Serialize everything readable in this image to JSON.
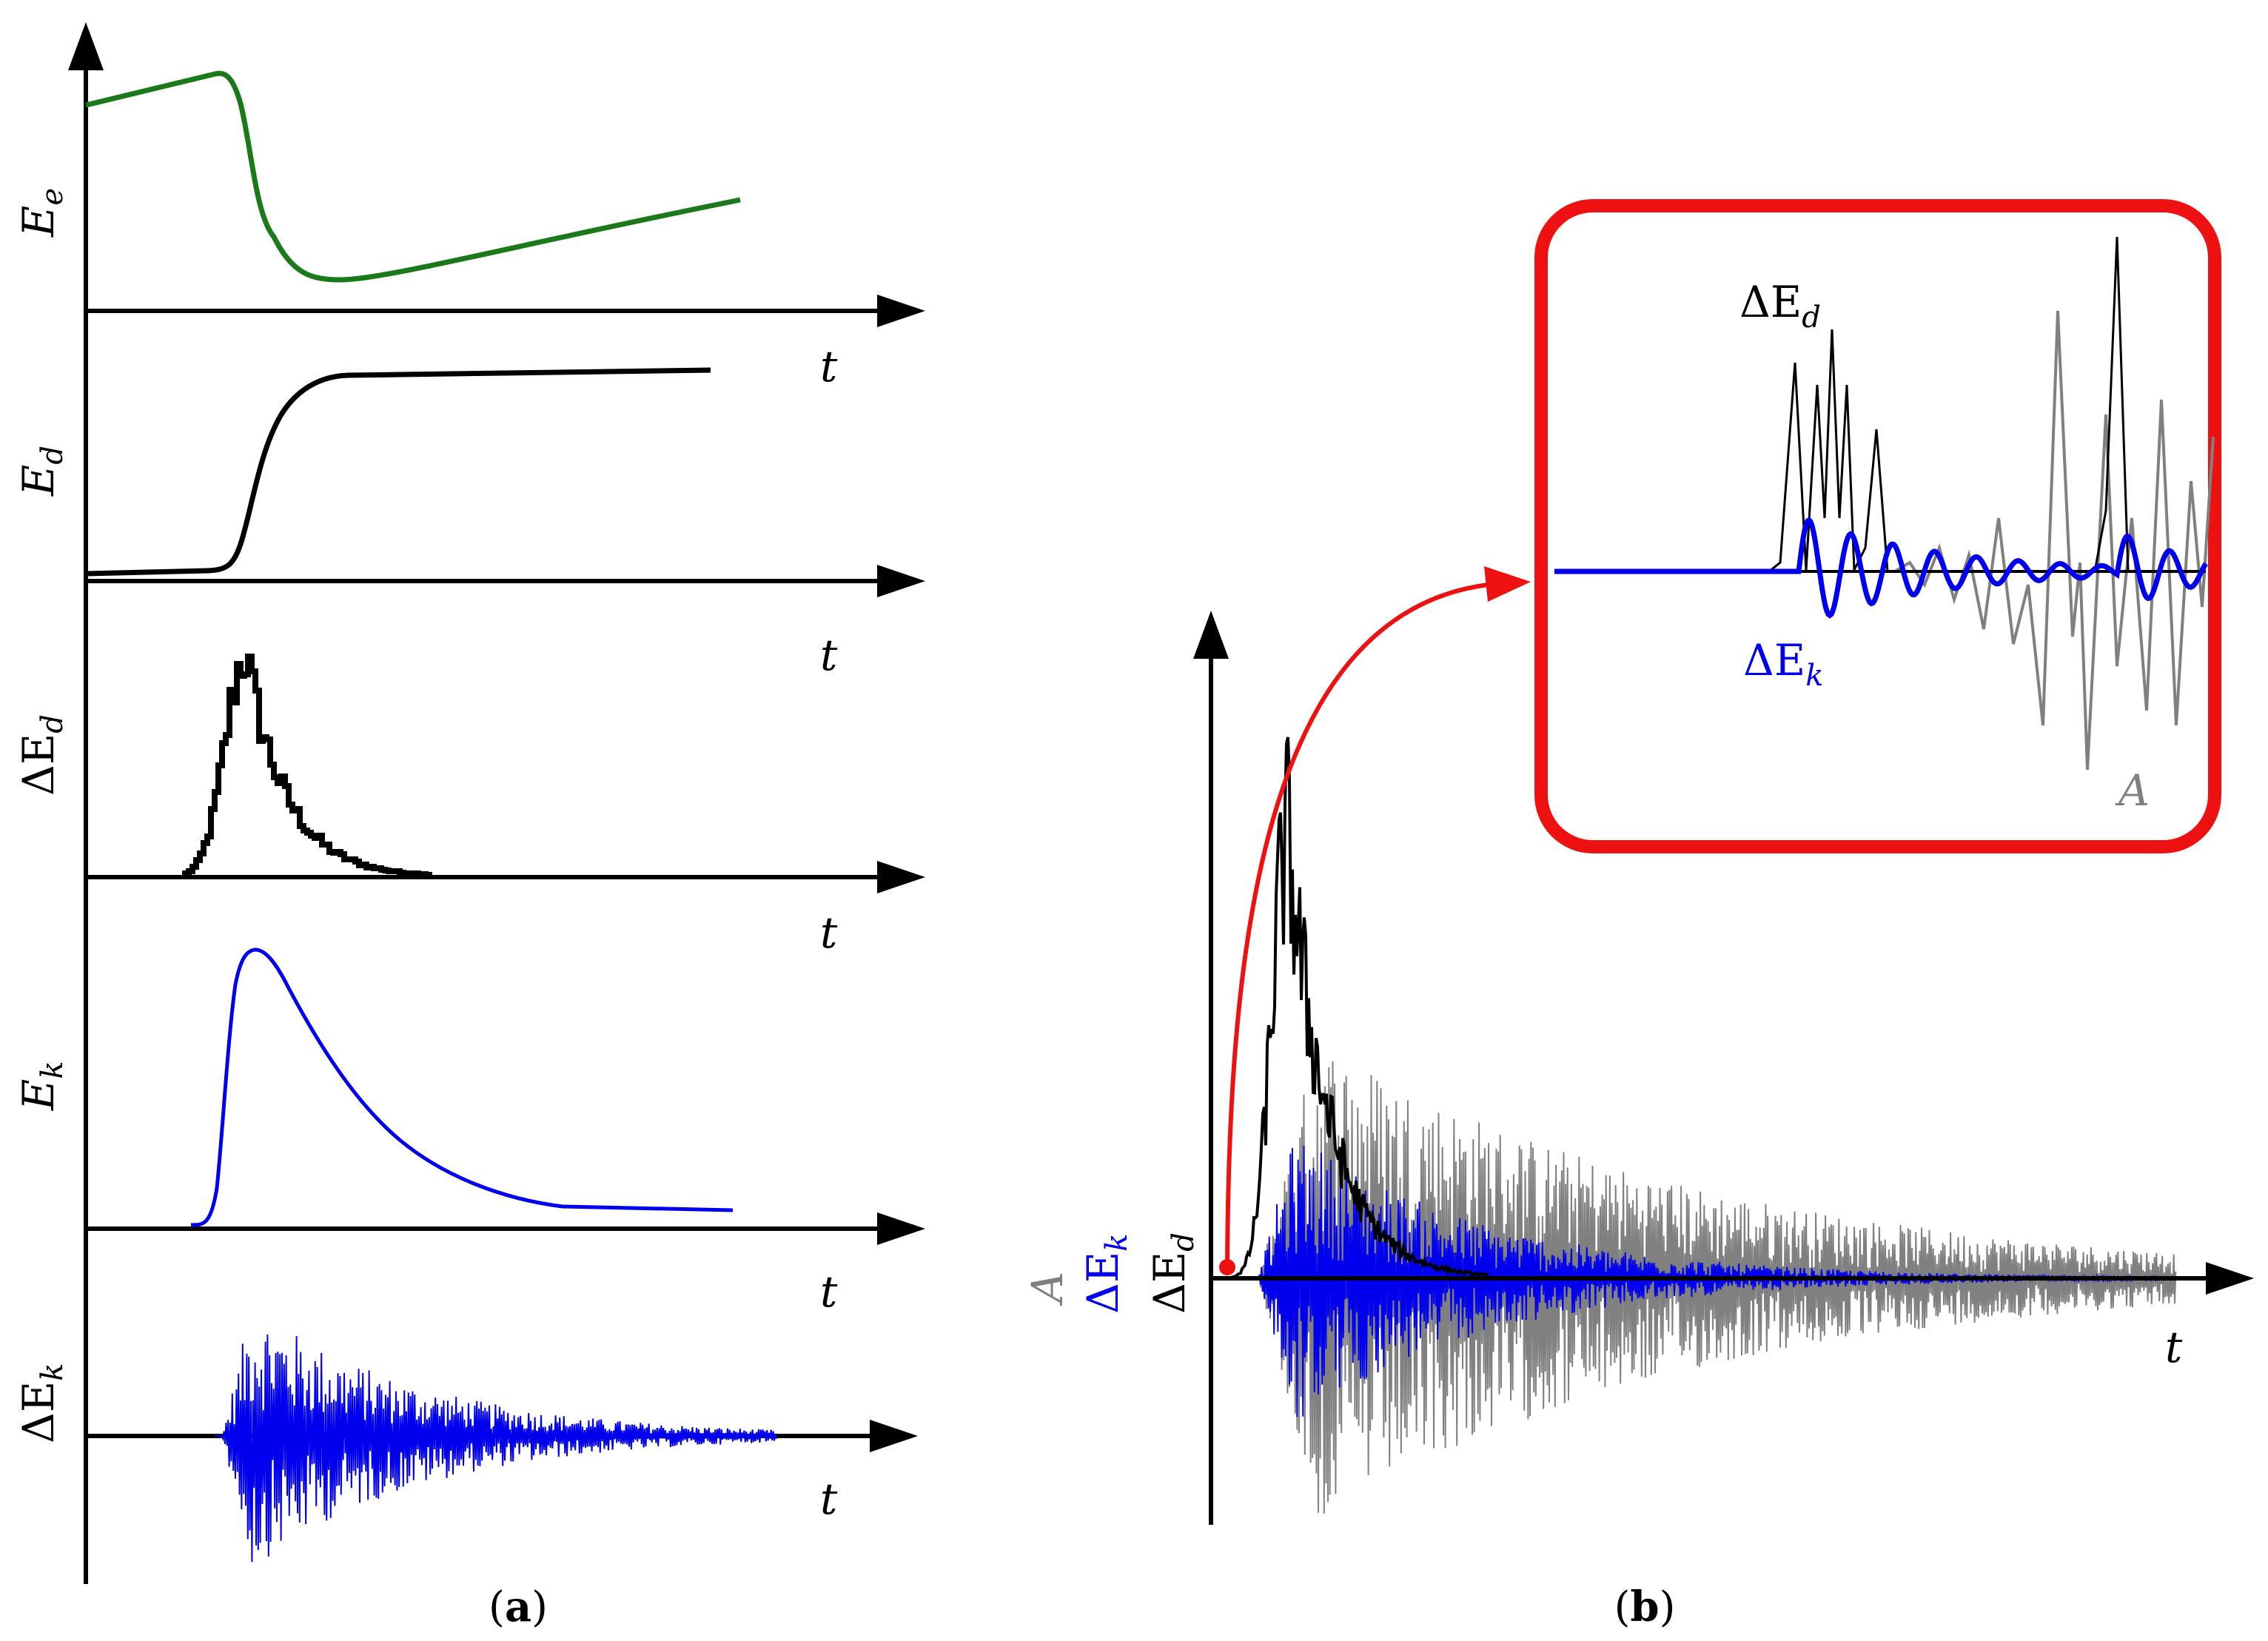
{
  "panel_a": {
    "caption_open": "(",
    "caption_letter": "a",
    "caption_close": ")",
    "rows": [
      {
        "id": "Ee",
        "ylabel_base": "E",
        "ylabel_sub": "e",
        "xlabel": "t",
        "color": "#1a7a1a"
      },
      {
        "id": "Ed",
        "ylabel_base": "E",
        "ylabel_sub": "d",
        "xlabel": "t",
        "color": "#000000"
      },
      {
        "id": "dEd",
        "ylabel_base": "ΔE",
        "ylabel_sub": "d",
        "xlabel": "t",
        "color": "#000000"
      },
      {
        "id": "Ek",
        "ylabel_base": "E",
        "ylabel_sub": "k",
        "xlabel": "t",
        "color": "#0000ee"
      },
      {
        "id": "dEk",
        "ylabel_base": "ΔE",
        "ylabel_sub": "k",
        "xlabel": "t",
        "color": "#0000ee"
      }
    ]
  },
  "panel_b": {
    "caption_open": "(",
    "caption_letter": "b",
    "caption_close": ")",
    "xlabel": "t",
    "ylabel_A": "A",
    "ylabel_dEk_base": "ΔE",
    "ylabel_dEk_sub": "k",
    "ylabel_dEd_base": "ΔE",
    "ylabel_dEd_sub": "d",
    "series_colors": {
      "A": "#808080",
      "dEk": "#0000ee",
      "dEd": "#000000"
    },
    "inset": {
      "border_color": "#ee1111",
      "label_dEd_base": "ΔE",
      "label_dEd_sub": "d",
      "label_dEk_base": "ΔE",
      "label_dEk_sub": "k",
      "label_A": "A"
    }
  }
}
